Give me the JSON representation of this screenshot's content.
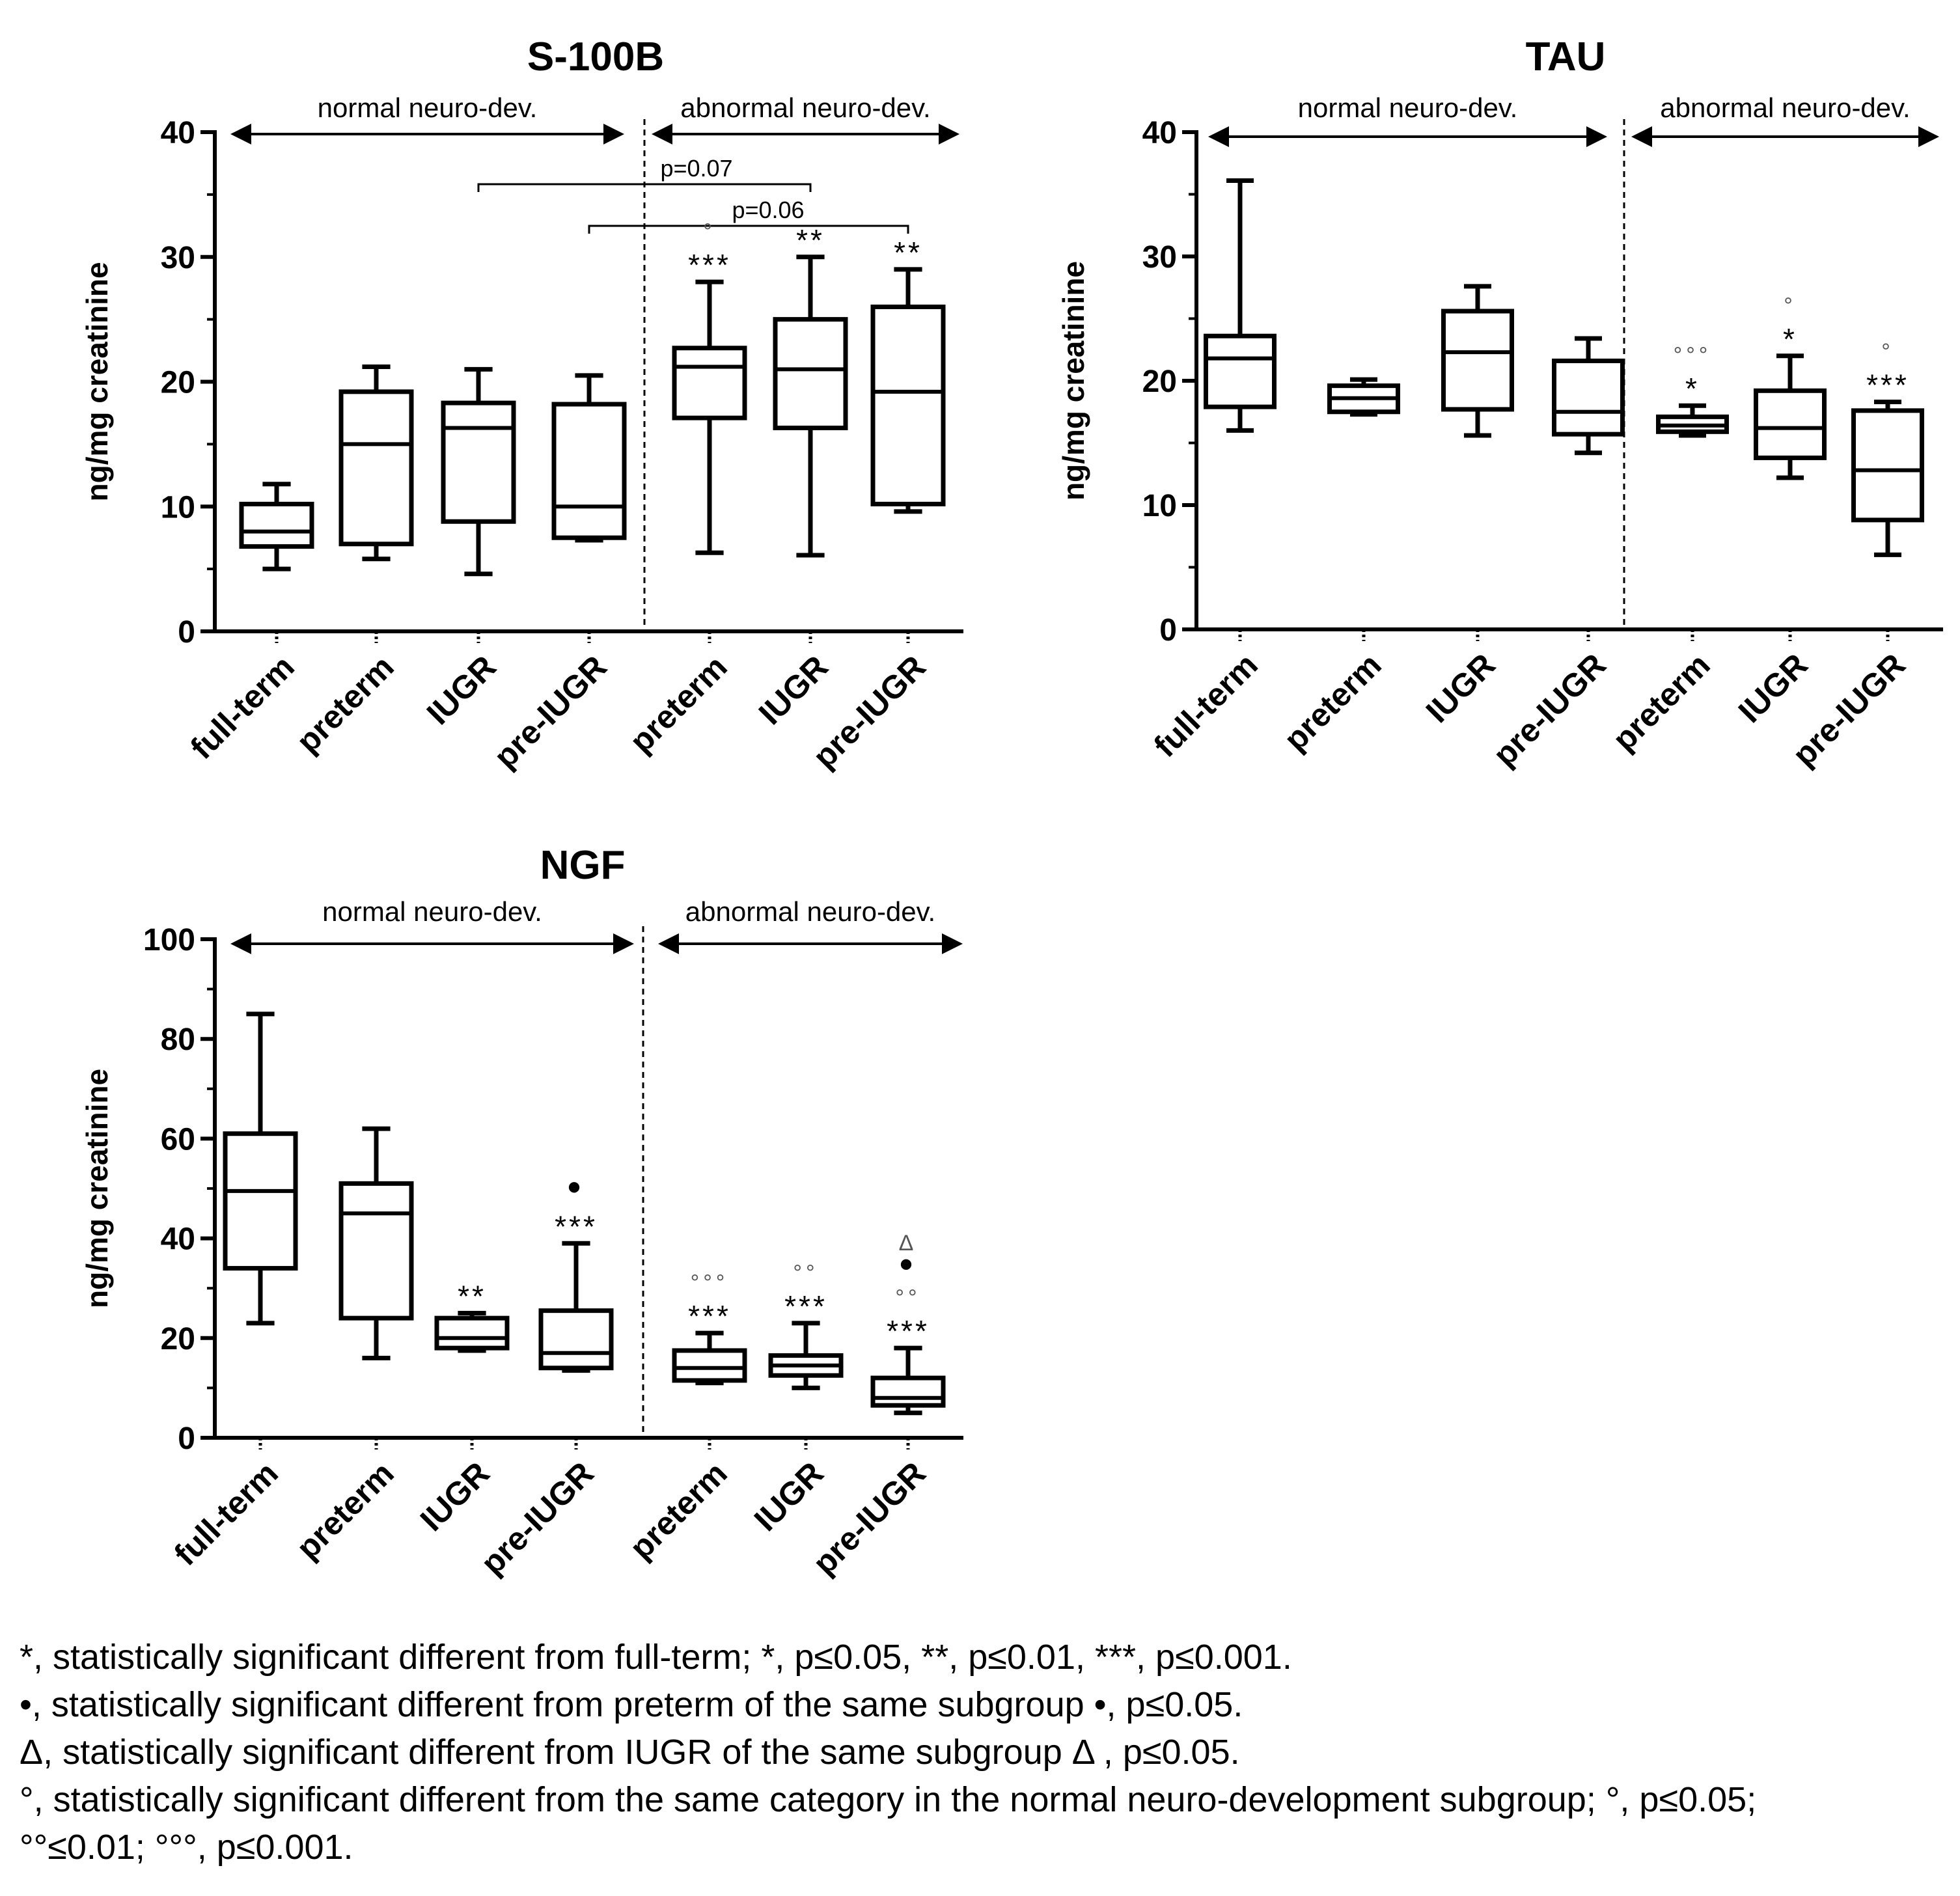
{
  "chart_data": [
    {
      "type": "boxplot",
      "title": "S-100B",
      "ylabel": "ng/mg creatinine",
      "ylim": [
        0,
        40
      ],
      "yticks": [
        "0",
        "10",
        "20",
        "30",
        "40"
      ],
      "subgroups": [
        "normal neuro-dev.",
        "abnormal neuro-dev."
      ],
      "categories": [
        "full-term",
        "preterm",
        "IUGR",
        "pre-IUGR",
        "preterm",
        "IUGR",
        "pre-IUGR"
      ],
      "boxes": [
        {
          "min": 5,
          "q1": 6.8,
          "median": 8,
          "q3": 10.2,
          "max": 11.8,
          "marks": []
        },
        {
          "min": 5.8,
          "q1": 7,
          "median": 15,
          "q3": 19.2,
          "max": 21.2,
          "marks": []
        },
        {
          "min": 4.6,
          "q1": 8.8,
          "median": 16.3,
          "q3": 18.3,
          "max": 21,
          "marks": []
        },
        {
          "min": 7.3,
          "q1": 7.5,
          "median": 10,
          "q3": 18.2,
          "max": 20.5,
          "marks": []
        },
        {
          "min": 6.3,
          "q1": 17.1,
          "median": 21.2,
          "q3": 22.7,
          "max": 28,
          "marks": [
            "***",
            "°"
          ]
        },
        {
          "min": 6.1,
          "q1": 16.3,
          "median": 21,
          "q3": 25,
          "max": 30,
          "marks": [
            "**"
          ]
        },
        {
          "min": 9.6,
          "q1": 10.2,
          "median": 19.2,
          "q3": 26,
          "max": 29,
          "marks": [
            "**"
          ]
        }
      ],
      "comparisons": [
        {
          "label": "p=0.07",
          "from": 2,
          "to": 5
        },
        {
          "label": "p=0.06",
          "from": 3,
          "to": 6
        }
      ]
    },
    {
      "type": "boxplot",
      "title": "TAU",
      "ylabel": "ng/mg creatinine",
      "ylim": [
        0,
        40
      ],
      "yticks": [
        "0",
        "10",
        "20",
        "30",
        "40"
      ],
      "subgroups": [
        "normal neuro-dev.",
        "abnormal neuro-dev."
      ],
      "categories": [
        "full-term",
        "preterm",
        "IUGR",
        "pre-IUGR",
        "preterm",
        "IUGR",
        "pre-IUGR"
      ],
      "boxes": [
        {
          "min": 16,
          "q1": 17.9,
          "median": 21.8,
          "q3": 23.6,
          "max": 36.1,
          "marks": []
        },
        {
          "min": 17.3,
          "q1": 17.5,
          "median": 18.6,
          "q3": 19.6,
          "max": 20.1,
          "marks": []
        },
        {
          "min": 15.6,
          "q1": 17.7,
          "median": 22.3,
          "q3": 25.6,
          "max": 27.6,
          "marks": []
        },
        {
          "min": 14.2,
          "q1": 15.7,
          "median": 17.5,
          "q3": 21.6,
          "max": 23.4,
          "marks": []
        },
        {
          "min": 15.6,
          "q1": 15.9,
          "median": 16.4,
          "q3": 17.1,
          "max": 18,
          "marks": [
            "*",
            "°°°"
          ]
        },
        {
          "min": 12.2,
          "q1": 13.8,
          "median": 16.2,
          "q3": 19.2,
          "max": 22,
          "marks": [
            "*",
            "°"
          ]
        },
        {
          "min": 6,
          "q1": 8.8,
          "median": 12.8,
          "q3": 17.6,
          "max": 18.3,
          "marks": [
            "***",
            "°"
          ]
        }
      ],
      "comparisons": []
    },
    {
      "type": "boxplot",
      "title": "NGF",
      "ylabel": "ng/mg creatinine",
      "ylim": [
        0,
        100
      ],
      "yticks": [
        "0",
        "20",
        "40",
        "60",
        "80",
        "100"
      ],
      "subgroups": [
        "normal neuro-dev.",
        "abnormal neuro-dev."
      ],
      "categories": [
        "full-term",
        "preterm",
        "IUGR",
        "pre-IUGR",
        "preterm",
        "IUGR",
        "pre-IUGR"
      ],
      "boxes": [
        {
          "min": 23,
          "q1": 34,
          "median": 49.5,
          "q3": 61,
          "max": 85,
          "marks": []
        },
        {
          "min": 16,
          "q1": 24,
          "median": 45,
          "q3": 51,
          "max": 62,
          "marks": []
        },
        {
          "min": 17.5,
          "q1": 18,
          "median": 20,
          "q3": 24,
          "max": 25,
          "marks": [
            "**"
          ]
        },
        {
          "min": 13.5,
          "q1": 14,
          "median": 17,
          "q3": 25.5,
          "max": 39,
          "marks": [
            "***",
            "•"
          ]
        },
        {
          "min": 11,
          "q1": 11.5,
          "median": 14,
          "q3": 17.5,
          "max": 21,
          "marks": [
            "***",
            "°°°"
          ]
        },
        {
          "min": 10,
          "q1": 12.5,
          "median": 14.5,
          "q3": 16.5,
          "max": 23,
          "marks": [
            "***",
            "°°"
          ]
        },
        {
          "min": 5,
          "q1": 6.5,
          "median": 8,
          "q3": 12,
          "max": 18,
          "marks": [
            "***",
            "°°",
            "•",
            "Δ"
          ]
        }
      ],
      "comparisons": []
    }
  ],
  "footnotes": [
    "*, statistically significant different from full-term; *, p≤0.05, **, p≤0.01, ***, p≤0.001.",
    "•, statistically significant different from preterm of the same subgroup  •, p≤0.05.",
    "Δ, statistically significant different from IUGR of the same subgroup Δ , p≤0.05.",
    "°, statistically significant different from the same category in the normal neuro-development subgroup; °, p≤0.05;",
    "°°≤0.01; °°°, p≤0.001."
  ]
}
